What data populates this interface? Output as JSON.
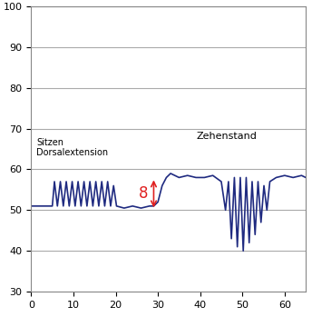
{
  "chart_data": {
    "type": "line",
    "x": [
      0,
      2,
      4,
      5,
      5.5,
      6.2,
      6.9,
      7.6,
      8.3,
      9,
      9.7,
      10.4,
      11.1,
      11.8,
      12.5,
      13.2,
      13.9,
      14.6,
      15.3,
      16,
      16.7,
      17.4,
      18.1,
      18.8,
      19.5,
      20.2,
      22,
      24,
      26,
      28,
      29,
      30,
      31,
      32,
      33,
      35,
      37,
      39,
      41,
      43,
      45,
      46,
      46.7,
      47.4,
      48.1,
      48.8,
      49.5,
      50.2,
      50.9,
      51.6,
      52.3,
      53,
      53.7,
      54.4,
      55.1,
      55.8,
      56.5,
      58,
      60,
      62,
      64,
      65
    ],
    "series": [
      {
        "name": null,
        "color": "#1f2a80",
        "values": [
          51,
          51,
          51,
          51,
          57,
          51,
          57,
          51,
          57,
          51,
          57,
          51,
          57,
          51,
          57,
          51,
          57,
          51,
          57,
          51,
          57,
          51,
          57,
          51,
          56,
          51,
          50.5,
          51,
          50.5,
          51,
          51,
          52,
          56,
          58,
          59,
          58,
          58.5,
          58,
          58,
          58.5,
          57,
          50,
          57,
          43,
          58,
          41,
          58,
          40,
          58,
          42,
          57,
          44,
          57,
          47,
          56,
          50,
          57,
          58,
          58.5,
          58,
          58.5,
          58
        ]
      }
    ],
    "xlim": [
      0,
      65
    ],
    "xticks": [
      0,
      10,
      20,
      30,
      40,
      50,
      60
    ],
    "ylim": [
      30,
      100
    ],
    "yticks": [
      30,
      40,
      50,
      60,
      70,
      80,
      90,
      100
    ],
    "grid": "y",
    "annotations": [
      {
        "text": "Sitzen\nDorsalextension"
      },
      {
        "text": "Zehenstand"
      },
      {
        "text": "8",
        "x": 29,
        "y_from": 50,
        "y_to": 58,
        "color": "#e02020"
      }
    ]
  }
}
